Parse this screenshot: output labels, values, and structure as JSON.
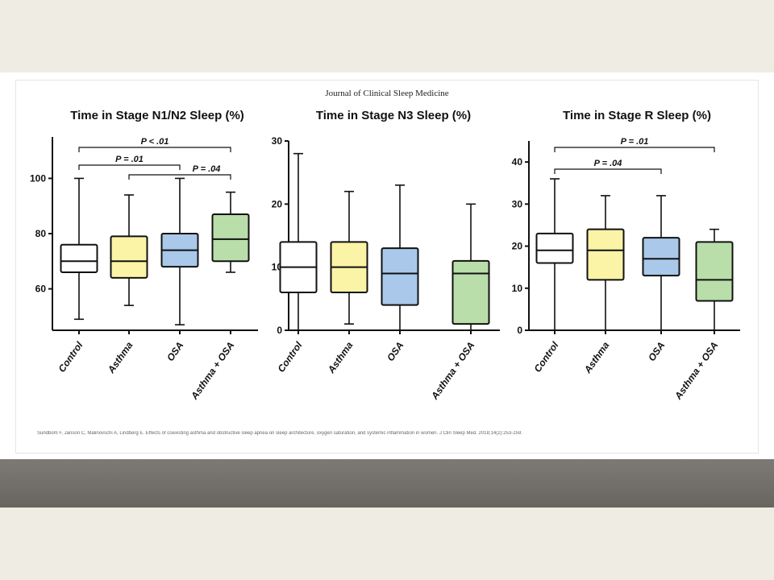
{
  "journal": "Journal of Clinical Sleep Medicine",
  "citation": "Sundbom F, Janson C, Malinovschi A, Lindberg E. Effects of coexisting asthma and obstructive sleep apnea on sleep architecture, oxygen saturation, and systemic inflammation in women. J Clin Sleep Med. 2018;14(2):253-259.",
  "colors": {
    "Control": "#ffffff",
    "Asthma": "#fbf3a6",
    "OSA": "#a9c8ea",
    "Asthma + OSA": "#b9deaa"
  },
  "chart_data": [
    {
      "type": "boxplot",
      "title": "Time in Stage N1/N2 Sleep (%)",
      "categories": [
        "Control",
        "Asthma",
        "OSA",
        "Asthma + OSA"
      ],
      "ylim": [
        45,
        115
      ],
      "yticks": [
        60,
        80,
        100
      ],
      "boxes": [
        {
          "min": 49,
          "q1": 66,
          "median": 70,
          "q3": 76,
          "max": 100
        },
        {
          "min": 54,
          "q1": 64,
          "median": 70,
          "q3": 79,
          "max": 94
        },
        {
          "min": 47,
          "q1": 68,
          "median": 74,
          "q3": 80,
          "max": 100
        },
        {
          "min": 66,
          "q1": 70,
          "median": 78,
          "q3": 87,
          "max": 95
        }
      ],
      "annotations": [
        {
          "from": "Control",
          "to": "Asthma + OSA",
          "label": "P < .01"
        },
        {
          "from": "Control",
          "to": "OSA",
          "label": "P = .01"
        },
        {
          "from": "Asthma",
          "to": "Asthma + OSA",
          "label": "P = .04"
        }
      ]
    },
    {
      "type": "boxplot",
      "title": "Time in Stage N3 Sleep (%)",
      "categories": [
        "Control",
        "Asthma",
        "OSA",
        "Asthma + OSA"
      ],
      "ylim": [
        0,
        30
      ],
      "yticks": [
        0,
        10,
        20,
        30
      ],
      "boxes": [
        {
          "min": 0,
          "q1": 6,
          "median": 10,
          "q3": 14,
          "max": 28
        },
        {
          "min": 1,
          "q1": 6,
          "median": 10,
          "q3": 14,
          "max": 22
        },
        {
          "min": 0,
          "q1": 4,
          "median": 9,
          "q3": 13,
          "max": 23
        },
        {
          "min": 0,
          "q1": 1,
          "median": 9,
          "q3": 11,
          "max": 20
        }
      ],
      "annotations": []
    },
    {
      "type": "boxplot",
      "title": "Time in Stage R Sleep (%)",
      "categories": [
        "Control",
        "Asthma",
        "OSA",
        "Asthma + OSA"
      ],
      "ylim": [
        0,
        45
      ],
      "yticks": [
        0,
        10,
        20,
        30,
        40
      ],
      "boxes": [
        {
          "min": 0,
          "q1": 16,
          "median": 19,
          "q3": 23,
          "max": 36
        },
        {
          "min": 0,
          "q1": 12,
          "median": 19,
          "q3": 24,
          "max": 32
        },
        {
          "min": 0,
          "q1": 13,
          "median": 17,
          "q3": 22,
          "max": 32
        },
        {
          "min": 0,
          "q1": 7,
          "median": 12,
          "q3": 21,
          "max": 24
        }
      ],
      "annotations": [
        {
          "from": "Control",
          "to": "Asthma + OSA",
          "label": "P = .01"
        },
        {
          "from": "Control",
          "to": "OSA",
          "label": "P = .04"
        }
      ]
    }
  ]
}
